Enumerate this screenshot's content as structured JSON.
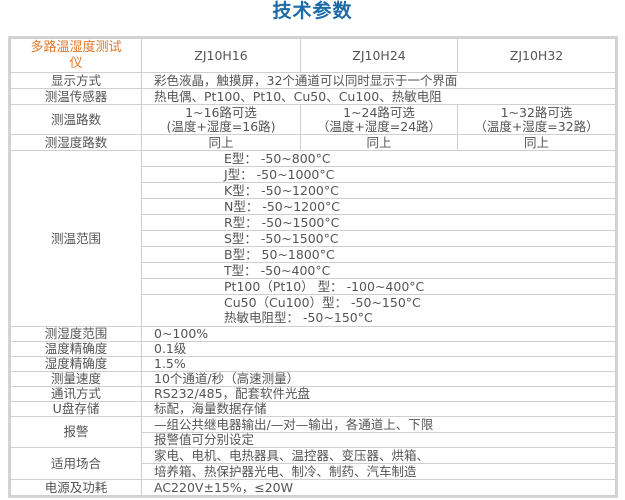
{
  "title": "技术参数",
  "header": {
    "product": "多路温湿度测试仪",
    "models": [
      "ZJ10H16",
      "ZJ10H24",
      "ZJ10H32"
    ]
  },
  "rows": {
    "display": {
      "label": "显示方式",
      "value": "彩色液晶，触摸屏，32个通道可以同时显示于一个界面"
    },
    "sensor": {
      "label": "测温传感器",
      "value": "热电偶、Pt100、Pt10、Cu50、Cu100、热敏电阻"
    },
    "temp_channels": {
      "label": "测温路数",
      "values": [
        [
          "1~16路可选",
          "(温度+湿度=16路)"
        ],
        [
          "1~24路可选",
          "（温度+湿度=24路）"
        ],
        [
          "1~32路可选",
          "（温度+湿度=32路）"
        ]
      ]
    },
    "hum_channels": {
      "label": "测湿度路数",
      "values": [
        "同上",
        "同上",
        "同上"
      ]
    },
    "temp_range": {
      "label": "测温范围",
      "values": [
        "E型： -50~800°C",
        "J型： -50~1000°C",
        "K型： -50~1200°C",
        "N型： -50~1200°C",
        "R型： -50~1500°C",
        "S型： -50~1500°C",
        "B型：  50~1800°C",
        "T型： -50~400°C",
        "Pt100（Pt10） 型： -100~400°C",
        "Cu50（Cu100）型： -50~150°C",
        "热敏电阻型： -50~150°C"
      ]
    },
    "hum_range": {
      "label": "测湿度范围",
      "value": "0~100%"
    },
    "temp_accuracy": {
      "label": "温度精确度",
      "value": "0.1级"
    },
    "hum_accuracy": {
      "label": "湿度精确度",
      "value": "1.5%"
    },
    "speed": {
      "label": "测量速度",
      "value": "10个通道/秒（高速测量）"
    },
    "comm": {
      "label": "通讯方式",
      "value": "RS232/485，配套软件光盘"
    },
    "usb": {
      "label": "U盘存储",
      "value": "标配，海量数据存储"
    },
    "alarm": {
      "label": "报警",
      "lines": [
        "—组公共继电器输出/—对—输出，各通道上、下限",
        "报警值可分别设定"
      ]
    },
    "application": {
      "label": "适用场合",
      "lines": [
        "家电、电机、电热器具、温控器、变压器、烘箱、",
        "培养箱、热保护器光电、制冷、制药、汽车制造"
      ]
    },
    "power": {
      "label": "电源及功耗",
      "value": "AC220V±15%，≤20W"
    }
  }
}
